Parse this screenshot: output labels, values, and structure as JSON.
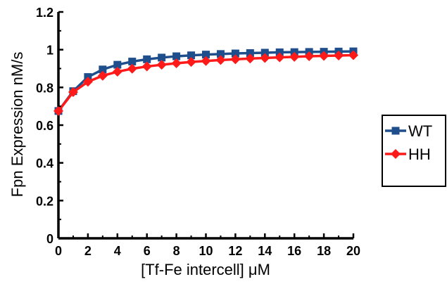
{
  "chart_data": {
    "type": "line",
    "xlabel": "[Tf-Fe intercell] μM",
    "ylabel": "Fpn Expression nM/s",
    "xlim": [
      0,
      20
    ],
    "ylim": [
      0,
      1.2
    ],
    "xticks": [
      "0",
      "2",
      "4",
      "6",
      "8",
      "10",
      "12",
      "14",
      "16",
      "18",
      "20"
    ],
    "yticks": [
      "0",
      "0.2",
      "0.4",
      "0.6",
      "0.8",
      "1",
      "1.2"
    ],
    "x": [
      0,
      1,
      2,
      3,
      4,
      5,
      6,
      7,
      8,
      9,
      10,
      11,
      12,
      13,
      14,
      15,
      16,
      17,
      18,
      19,
      20
    ],
    "series": [
      {
        "name": "WT",
        "color": "#1f4e8c",
        "marker": "square",
        "values": [
          0.675,
          0.78,
          0.855,
          0.895,
          0.92,
          0.937,
          0.949,
          0.958,
          0.965,
          0.97,
          0.974,
          0.977,
          0.98,
          0.982,
          0.984,
          0.986,
          0.987,
          0.988,
          0.989,
          0.99,
          0.991
        ]
      },
      {
        "name": "HH",
        "color": "#ff1a1a",
        "marker": "diamond",
        "values": [
          0.675,
          0.775,
          0.83,
          0.862,
          0.883,
          0.899,
          0.911,
          0.92,
          0.928,
          0.935,
          0.94,
          0.945,
          0.949,
          0.953,
          0.956,
          0.959,
          0.962,
          0.965,
          0.967,
          0.969,
          0.971
        ]
      }
    ],
    "legend_position": "right",
    "grid": false
  }
}
